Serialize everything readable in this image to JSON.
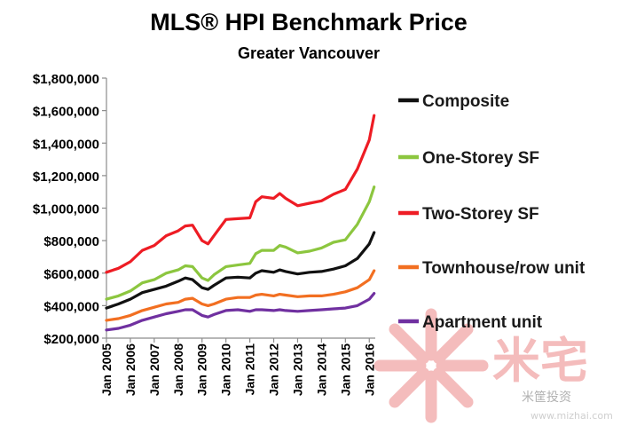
{
  "chart_data": {
    "type": "line",
    "title": "MLS® HPI Benchmark Price",
    "subtitle": "Greater Vancouver",
    "xlabel": "",
    "ylabel": "",
    "ylim": [
      200000,
      1800000
    ],
    "y_ticks": [
      200000,
      400000,
      600000,
      800000,
      1000000,
      1200000,
      1400000,
      1600000,
      1800000
    ],
    "y_tick_labels": [
      "$200,000",
      "$400,000",
      "$600,000",
      "$800,000",
      "$1,000,000",
      "$1,200,000",
      "$1,400,000",
      "$1,600,000",
      "$1,800,000"
    ],
    "xlim": [
      2005.0,
      2016.25
    ],
    "x_ticks": [
      2005,
      2006,
      2007,
      2008,
      2009,
      2010,
      2011,
      2012,
      2013,
      2014,
      2015,
      2016
    ],
    "x_tick_labels": [
      "Jan 2005",
      "Jan 2006",
      "Jan 2007",
      "Jan 2008",
      "Jan 2009",
      "Jan 2010",
      "Jan 2011",
      "Jan 2012",
      "Jan 2013",
      "Jan 2014",
      "Jan 2015",
      "Jan 2016"
    ],
    "grid": false,
    "legend_position": "right",
    "series": [
      {
        "name": "Composite",
        "color": "#111111",
        "x": [
          2005.0,
          2005.5,
          2006.0,
          2006.5,
          2007.0,
          2007.5,
          2008.0,
          2008.3,
          2008.6,
          2009.0,
          2009.25,
          2009.5,
          2010.0,
          2010.5,
          2011.0,
          2011.25,
          2011.5,
          2012.0,
          2012.25,
          2012.5,
          2013.0,
          2013.5,
          2014.0,
          2014.5,
          2015.0,
          2015.5,
          2016.0,
          2016.2
        ],
        "y": [
          385000,
          410000,
          440000,
          480000,
          500000,
          520000,
          550000,
          570000,
          560000,
          510000,
          500000,
          525000,
          570000,
          575000,
          570000,
          600000,
          615000,
          605000,
          620000,
          610000,
          595000,
          605000,
          610000,
          625000,
          645000,
          690000,
          780000,
          850000
        ]
      },
      {
        "name": "One-Storey SF",
        "color": "#8cc63f",
        "x": [
          2005.0,
          2005.5,
          2006.0,
          2006.5,
          2007.0,
          2007.5,
          2008.0,
          2008.3,
          2008.6,
          2009.0,
          2009.25,
          2009.5,
          2010.0,
          2010.5,
          2011.0,
          2011.25,
          2011.5,
          2012.0,
          2012.25,
          2012.5,
          2013.0,
          2013.5,
          2014.0,
          2014.5,
          2015.0,
          2015.5,
          2016.0,
          2016.2
        ],
        "y": [
          440000,
          460000,
          490000,
          540000,
          560000,
          600000,
          620000,
          645000,
          640000,
          570000,
          555000,
          590000,
          640000,
          650000,
          660000,
          720000,
          740000,
          740000,
          770000,
          760000,
          725000,
          735000,
          755000,
          790000,
          805000,
          900000,
          1040000,
          1130000
        ]
      },
      {
        "name": "Two-Storey SF",
        "color": "#ee1c24",
        "x": [
          2005.0,
          2005.5,
          2006.0,
          2006.5,
          2007.0,
          2007.5,
          2008.0,
          2008.3,
          2008.6,
          2009.0,
          2009.25,
          2009.5,
          2010.0,
          2010.5,
          2011.0,
          2011.25,
          2011.5,
          2012.0,
          2012.25,
          2012.5,
          2013.0,
          2013.5,
          2014.0,
          2014.5,
          2015.0,
          2015.5,
          2016.0,
          2016.2
        ],
        "y": [
          605000,
          630000,
          670000,
          740000,
          770000,
          830000,
          860000,
          890000,
          895000,
          800000,
          780000,
          830000,
          930000,
          935000,
          940000,
          1040000,
          1070000,
          1060000,
          1090000,
          1060000,
          1015000,
          1030000,
          1045000,
          1085000,
          1115000,
          1240000,
          1420000,
          1570000
        ]
      },
      {
        "name": "Townhouse/row unit",
        "color": "#f26f21",
        "x": [
          2005.0,
          2005.5,
          2006.0,
          2006.5,
          2007.0,
          2007.5,
          2008.0,
          2008.3,
          2008.6,
          2009.0,
          2009.25,
          2009.5,
          2010.0,
          2010.5,
          2011.0,
          2011.25,
          2011.5,
          2012.0,
          2012.25,
          2012.5,
          2013.0,
          2013.5,
          2014.0,
          2014.5,
          2015.0,
          2015.5,
          2016.0,
          2016.2
        ],
        "y": [
          310000,
          320000,
          340000,
          370000,
          390000,
          410000,
          420000,
          440000,
          445000,
          410000,
          400000,
          410000,
          440000,
          450000,
          450000,
          465000,
          470000,
          460000,
          470000,
          465000,
          455000,
          460000,
          460000,
          470000,
          485000,
          510000,
          560000,
          615000
        ]
      },
      {
        "name": "Apartment unit",
        "color": "#7030a0",
        "x": [
          2005.0,
          2005.5,
          2006.0,
          2006.5,
          2007.0,
          2007.5,
          2008.0,
          2008.3,
          2008.6,
          2009.0,
          2009.25,
          2009.5,
          2010.0,
          2010.5,
          2011.0,
          2011.25,
          2011.5,
          2012.0,
          2012.25,
          2012.5,
          2013.0,
          2013.5,
          2014.0,
          2014.5,
          2015.0,
          2015.5,
          2016.0,
          2016.2
        ],
        "y": [
          250000,
          260000,
          280000,
          310000,
          330000,
          350000,
          365000,
          375000,
          375000,
          340000,
          330000,
          345000,
          370000,
          375000,
          365000,
          375000,
          375000,
          370000,
          375000,
          370000,
          365000,
          370000,
          375000,
          380000,
          385000,
          400000,
          440000,
          475000
        ]
      }
    ]
  },
  "watermark": {
    "brand": "米宅",
    "account": "米筐投资",
    "url": "www.mizhai.com",
    "color": "#f3b5b5"
  }
}
